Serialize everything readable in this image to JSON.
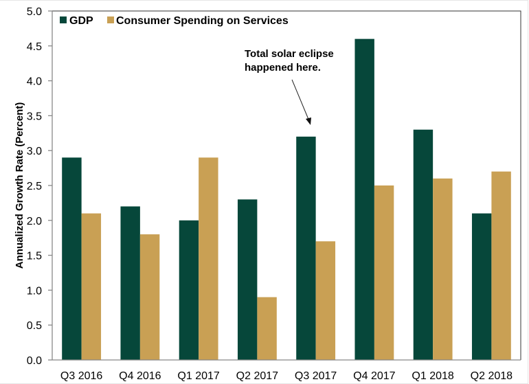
{
  "chart_data": {
    "type": "bar",
    "title": "",
    "xlabel": "",
    "ylabel": "Annualized Growth Rate (Percent)",
    "ylim": [
      0,
      5
    ],
    "yticks": [
      "0.0",
      "0.5",
      "1.0",
      "1.5",
      "2.0",
      "2.5",
      "3.0",
      "3.5",
      "4.0",
      "4.5",
      "5.0"
    ],
    "categories": [
      "Q3 2016",
      "Q4 2016",
      "Q1 2017",
      "Q2 2017",
      "Q3 2017",
      "Q4 2017",
      "Q1 2018",
      "Q2 2018"
    ],
    "series": [
      {
        "name": "GDP",
        "color": "#06473a",
        "values": [
          2.9,
          2.2,
          2.0,
          2.3,
          3.2,
          4.6,
          3.3,
          2.1
        ]
      },
      {
        "name": "Consumer Spending on Services",
        "color": "#c9a054",
        "values": [
          2.1,
          1.8,
          2.9,
          0.9,
          1.7,
          2.5,
          2.6,
          2.7
        ]
      }
    ],
    "grid": false,
    "legend_position": "top-left",
    "annotations": [
      {
        "text_lines": [
          "Total solar eclipse",
          "happened here."
        ],
        "points_to_category": "Q3 2017",
        "arrow": true
      }
    ]
  }
}
